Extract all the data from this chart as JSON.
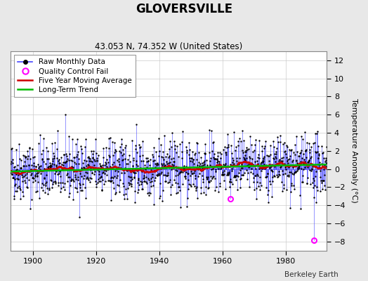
{
  "title": "GLOVERSVILLE",
  "subtitle": "43.053 N, 74.352 W (United States)",
  "ylabel": "Temperature Anomaly (°C)",
  "ylim": [
    -9,
    13
  ],
  "yticks": [
    -8,
    -6,
    -4,
    -2,
    0,
    2,
    4,
    6,
    8,
    10,
    12
  ],
  "xlim": [
    1893,
    1993
  ],
  "xticks": [
    1900,
    1920,
    1940,
    1960,
    1980
  ],
  "start_year": 1893,
  "end_year": 1993,
  "seed": 42,
  "background_color": "#e8e8e8",
  "plot_bg_color": "#ffffff",
  "stem_color": "#4444ff",
  "marker_color": "#000000",
  "moving_avg_color": "#cc0000",
  "trend_color": "#00bb00",
  "qc_fail_color": "#ff00ff",
  "qc_year_1": 1962.5,
  "qc_val_1": -3.3,
  "qc_year_2": 1989.0,
  "qc_val_2": -7.9,
  "noise_std": 1.6,
  "berkeley_earth_text": "Berkeley Earth",
  "legend_labels": [
    "Raw Monthly Data",
    "Quality Control Fail",
    "Five Year Moving Average",
    "Long-Term Trend"
  ]
}
